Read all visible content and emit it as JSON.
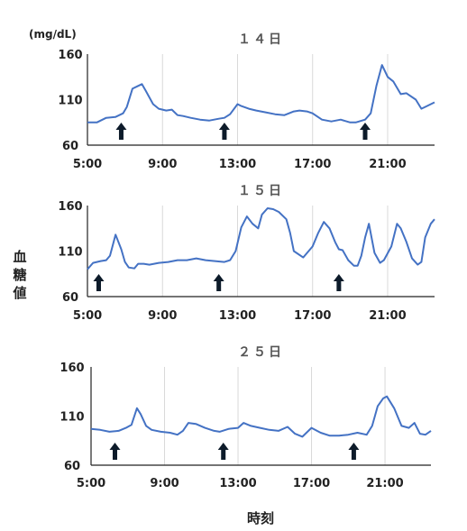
{
  "chart_data": {
    "type": "line",
    "unit_label": "(mg/dL)",
    "ylabel": "血糖値",
    "xlabel": "時刻",
    "line_color": "#4472C4",
    "arrow_color": "#0D1B2A",
    "grid": "vertical",
    "panels": [
      {
        "title": "１４日",
        "xlim": [
          5,
          23.5
        ],
        "ylim": [
          60,
          160
        ],
        "xticks": [
          "5:00",
          "9:00",
          "13:00",
          "17:00",
          "21:00"
        ],
        "yticks": [
          "160",
          "110",
          "60"
        ],
        "meal_arrows": [
          6.8,
          12.3,
          19.8
        ],
        "x": [
          5.0,
          5.5,
          6.0,
          6.5,
          6.9,
          7.1,
          7.4,
          7.7,
          7.9,
          8.1,
          8.5,
          8.8,
          9.2,
          9.5,
          9.8,
          10.1,
          10.5,
          11.0,
          11.5,
          12.0,
          12.3,
          12.6,
          13.0,
          13.2,
          13.6,
          14.0,
          14.5,
          15.0,
          15.5,
          16.0,
          16.3,
          16.7,
          17.0,
          17.5,
          18.0,
          18.5,
          19.0,
          19.3,
          19.8,
          20.1,
          20.4,
          20.7,
          21.0,
          21.3,
          21.7,
          22.0,
          22.5,
          22.8,
          23.0,
          23.5
        ],
        "y": [
          85,
          85,
          90,
          91,
          95,
          102,
          122,
          125,
          127,
          120,
          105,
          100,
          98,
          99,
          93,
          92,
          90,
          88,
          87,
          89,
          90,
          94,
          105,
          103,
          100,
          98,
          96,
          94,
          93,
          97,
          98,
          97,
          95,
          88,
          86,
          88,
          85,
          85,
          88,
          95,
          125,
          148,
          135,
          130,
          116,
          117,
          110,
          100,
          102,
          107
        ]
      },
      {
        "title": "１５日",
        "xlim": [
          5,
          23.5
        ],
        "ylim": [
          60,
          160
        ],
        "xticks": [
          "5:00",
          "9:00",
          "13:00",
          "17:00",
          "21:00"
        ],
        "yticks": [
          "160",
          "110",
          "60"
        ],
        "meal_arrows": [
          5.6,
          12.0,
          18.4
        ],
        "x": [
          5.0,
          5.3,
          5.7,
          6.0,
          6.2,
          6.5,
          6.8,
          7.0,
          7.2,
          7.5,
          7.7,
          8.0,
          8.3,
          8.8,
          9.3,
          9.8,
          10.3,
          10.8,
          11.3,
          11.8,
          12.3,
          12.6,
          12.9,
          13.2,
          13.5,
          13.8,
          14.1,
          14.3,
          14.6,
          14.9,
          15.2,
          15.6,
          15.8,
          16.0,
          16.5,
          17.0,
          17.3,
          17.6,
          17.9,
          18.2,
          18.4,
          18.6,
          18.9,
          19.2,
          19.4,
          19.6,
          19.8,
          20.0,
          20.3,
          20.6,
          20.8,
          21.2,
          21.5,
          21.7,
          22.0,
          22.3,
          22.6,
          22.8,
          23.0,
          23.3,
          23.5
        ],
        "y": [
          90,
          97,
          99,
          100,
          105,
          128,
          112,
          98,
          92,
          91,
          96,
          96,
          95,
          97,
          98,
          100,
          100,
          102,
          100,
          99,
          98,
          100,
          110,
          136,
          148,
          140,
          135,
          150,
          157,
          156,
          153,
          145,
          130,
          110,
          103,
          115,
          130,
          142,
          135,
          120,
          112,
          111,
          100,
          94,
          94,
          105,
          125,
          140,
          108,
          97,
          100,
          115,
          140,
          135,
          120,
          102,
          95,
          98,
          125,
          140,
          145
        ]
      },
      {
        "title": "２５日",
        "xlim": [
          5,
          23.5
        ],
        "ylim": [
          60,
          160
        ],
        "xticks": [
          "5:00",
          "9:00",
          "13:00",
          "17:00",
          "21:00"
        ],
        "yticks": [
          "160",
          "110",
          "60"
        ],
        "meal_arrows": [
          6.3,
          12.2,
          19.3
        ],
        "x": [
          5.0,
          5.5,
          6.0,
          6.5,
          6.9,
          7.2,
          7.5,
          7.7,
          8.0,
          8.3,
          8.8,
          9.3,
          9.7,
          10.0,
          10.3,
          10.7,
          11.2,
          11.7,
          12.0,
          12.5,
          13.0,
          13.3,
          13.7,
          14.2,
          14.7,
          15.2,
          15.7,
          16.1,
          16.5,
          17.0,
          17.5,
          18.0,
          18.5,
          19.0,
          19.5,
          20.0,
          20.3,
          20.6,
          20.9,
          21.1,
          21.5,
          21.9,
          22.3,
          22.6,
          22.9,
          23.2,
          23.5
        ],
        "y": [
          97,
          96,
          94,
          95,
          98,
          101,
          118,
          112,
          100,
          96,
          94,
          93,
          91,
          95,
          103,
          102,
          98,
          95,
          94,
          97,
          98,
          103,
          100,
          98,
          96,
          95,
          99,
          92,
          89,
          98,
          93,
          90,
          90,
          91,
          93,
          91,
          100,
          120,
          128,
          130,
          118,
          100,
          98,
          103,
          92,
          91,
          95
        ]
      }
    ]
  }
}
